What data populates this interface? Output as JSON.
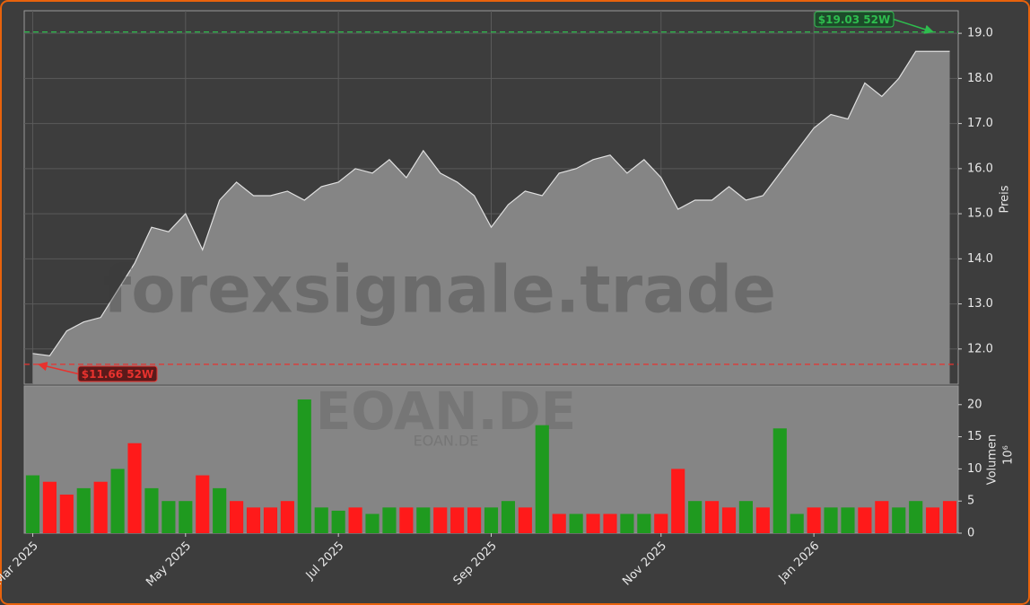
{
  "chart_data": [
    {
      "type": "area",
      "axis_label": "Preis",
      "color": "#858585",
      "line_color": "#e0e0e0",
      "watermark": "forexsignale.trade",
      "values": [
        11.9,
        11.85,
        12.4,
        12.6,
        12.7,
        13.3,
        13.9,
        14.7,
        14.6,
        15.0,
        14.2,
        15.3,
        15.7,
        15.4,
        15.4,
        15.5,
        15.3,
        15.6,
        15.7,
        16.0,
        15.9,
        16.2,
        15.8,
        16.4,
        15.9,
        15.7,
        15.4,
        14.7,
        15.2,
        15.5,
        15.4,
        15.9,
        16.0,
        16.2,
        16.3,
        15.9,
        16.2,
        15.8,
        15.1,
        15.3,
        15.3,
        15.6,
        15.3,
        15.4,
        15.9,
        16.4,
        16.9,
        17.2,
        17.1,
        17.9,
        17.6,
        18.0,
        18.6,
        18.6,
        18.6
      ],
      "ylim": [
        11.22,
        19.5
      ],
      "yticks": [
        {
          "value": 12,
          "label": "12.0"
        },
        {
          "value": 13,
          "label": "13.0"
        },
        {
          "value": 14,
          "label": "14.0"
        },
        {
          "value": 15,
          "label": "15.0"
        },
        {
          "value": 16,
          "label": "16.0"
        },
        {
          "value": 17,
          "label": "17.0"
        },
        {
          "value": 18,
          "label": "18.0"
        },
        {
          "value": 19,
          "label": "19.0"
        }
      ],
      "grid": true,
      "hlines": [
        {
          "value": 19.03,
          "label": "$19.03 52W",
          "color": "#2ebd4e"
        },
        {
          "value": 11.66,
          "label": "$11.66 52W",
          "color": "#e8322e"
        }
      ]
    },
    {
      "type": "bar",
      "axis_label": "Volumen",
      "axis_multiplier": "10⁶",
      "watermark": "EOAN.DE",
      "watermark_small": "EOAN.DE",
      "categories": [
        "Mar 2025",
        null,
        null,
        null,
        null,
        null,
        null,
        null,
        null,
        "May 2025",
        null,
        null,
        null,
        null,
        null,
        null,
        null,
        null,
        "Jul 2025",
        null,
        null,
        null,
        null,
        null,
        null,
        null,
        null,
        "Sep 2025",
        null,
        null,
        null,
        null,
        null,
        null,
        null,
        null,
        null,
        "Nov 2025",
        null,
        null,
        null,
        null,
        null,
        null,
        null,
        null,
        "Jan 2026",
        null,
        null,
        null,
        null,
        null,
        null,
        null,
        null
      ],
      "values": [
        9,
        8,
        6,
        7,
        8,
        10,
        14,
        7,
        5,
        5,
        9,
        7,
        5,
        4,
        4,
        5,
        20.8,
        4,
        3.5,
        4,
        3,
        4,
        4,
        4,
        4,
        4,
        4,
        4,
        5,
        4,
        16.8,
        3,
        3,
        3,
        3,
        3,
        3,
        3,
        10,
        5,
        5,
        4,
        5,
        4,
        16.3,
        3,
        4,
        4,
        4,
        4,
        5,
        4,
        5,
        4,
        5
      ],
      "colors": [
        "#1f9a1f",
        "#ff1a1a",
        "#ff1a1a",
        "#1f9a1f",
        "#ff1a1a",
        "#1f9a1f",
        "#ff1a1a",
        "#1f9a1f",
        "#1f9a1f",
        "#1f9a1f",
        "#ff1a1a",
        "#1f9a1f",
        "#ff1a1a",
        "#ff1a1a",
        "#ff1a1a",
        "#ff1a1a",
        "#1f9a1f",
        "#1f9a1f",
        "#1f9a1f",
        "#ff1a1a",
        "#1f9a1f",
        "#1f9a1f",
        "#ff1a1a",
        "#1f9a1f",
        "#ff1a1a",
        "#ff1a1a",
        "#ff1a1a",
        "#1f9a1f",
        "#1f9a1f",
        "#ff1a1a",
        "#1f9a1f",
        "#ff1a1a",
        "#1f9a1f",
        "#ff1a1a",
        "#ff1a1a",
        "#1f9a1f",
        "#1f9a1f",
        "#ff1a1a",
        "#ff1a1a",
        "#1f9a1f",
        "#ff1a1a",
        "#ff1a1a",
        "#1f9a1f",
        "#ff1a1a",
        "#1f9a1f",
        "#1f9a1f",
        "#ff1a1a",
        "#1f9a1f",
        "#1f9a1f",
        "#ff1a1a",
        "#ff1a1a",
        "#1f9a1f",
        "#1f9a1f",
        "#ff1a1a",
        "#ff1a1a"
      ],
      "ylim": [
        0,
        22.9
      ],
      "yticks": [
        0,
        5,
        10,
        15,
        20
      ],
      "background": "#858585"
    }
  ]
}
